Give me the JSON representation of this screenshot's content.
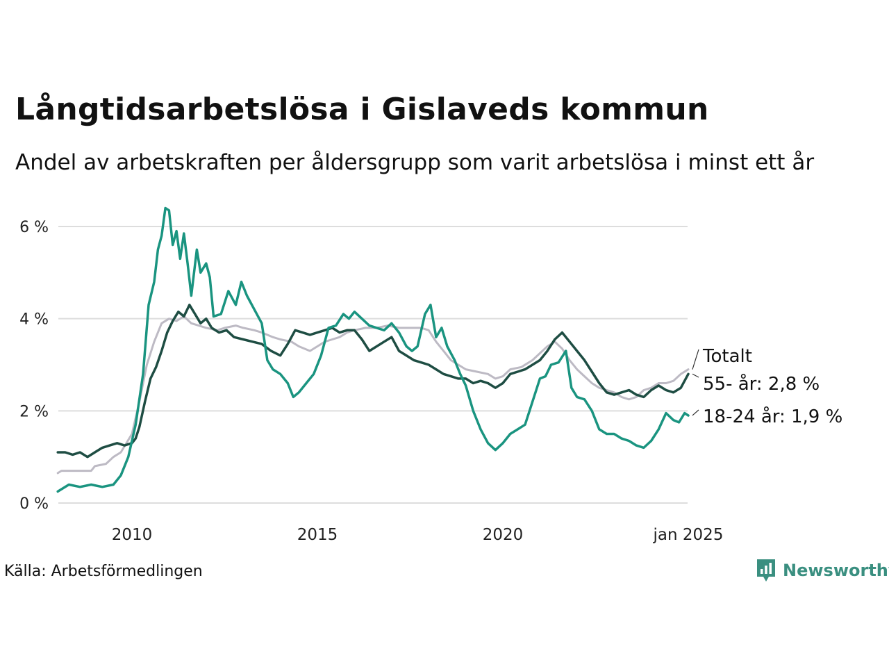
{
  "title": "Långtidsarbetslösa i Gislaveds kommun",
  "subtitle": "Andel av arbetskraften per åldersgrupp som varit arbetslösa i minst ett år",
  "source": "Källa: Arbetsförmedlingen",
  "brand": {
    "name": "Newsworthy",
    "color": "#3a8f80",
    "icon": "bar-chart-icon"
  },
  "chart_data": {
    "type": "line",
    "x_range": [
      2008.0,
      2025.0
    ],
    "ylim": [
      0,
      6.5
    ],
    "grid": true,
    "y_ticks": [
      {
        "value": 0,
        "label": "0 %"
      },
      {
        "value": 2,
        "label": "2 %"
      },
      {
        "value": 4,
        "label": "4 %"
      },
      {
        "value": 6,
        "label": "6 %"
      }
    ],
    "x_ticks": [
      {
        "value": 2010,
        "label": "2010"
      },
      {
        "value": 2015,
        "label": "2015"
      },
      {
        "value": 2020,
        "label": "2020"
      },
      {
        "value": 2025,
        "label": "jan 2025"
      }
    ],
    "legend": "direct-labels-right",
    "series": [
      {
        "name": "Totalt",
        "label": "Totalt",
        "color": "#bdbac4",
        "width": 3,
        "points": [
          [
            2008.0,
            0.65
          ],
          [
            2008.1,
            0.7
          ],
          [
            2008.6,
            0.7
          ],
          [
            2008.9,
            0.7
          ],
          [
            2009.0,
            0.8
          ],
          [
            2009.3,
            0.85
          ],
          [
            2009.5,
            1.0
          ],
          [
            2009.7,
            1.1
          ],
          [
            2010.0,
            1.5
          ],
          [
            2010.2,
            2.2
          ],
          [
            2010.4,
            3.0
          ],
          [
            2010.6,
            3.5
          ],
          [
            2010.8,
            3.9
          ],
          [
            2011.0,
            4.0
          ],
          [
            2011.2,
            3.95
          ],
          [
            2011.4,
            4.05
          ],
          [
            2011.6,
            3.9
          ],
          [
            2011.8,
            3.85
          ],
          [
            2012.0,
            3.8
          ],
          [
            2012.3,
            3.75
          ],
          [
            2012.5,
            3.8
          ],
          [
            2012.8,
            3.85
          ],
          [
            2013.0,
            3.8
          ],
          [
            2013.3,
            3.75
          ],
          [
            2013.5,
            3.7
          ],
          [
            2013.8,
            3.6
          ],
          [
            2014.0,
            3.55
          ],
          [
            2014.3,
            3.5
          ],
          [
            2014.5,
            3.4
          ],
          [
            2014.8,
            3.3
          ],
          [
            2015.0,
            3.4
          ],
          [
            2015.2,
            3.5
          ],
          [
            2015.4,
            3.55
          ],
          [
            2015.6,
            3.6
          ],
          [
            2015.8,
            3.7
          ],
          [
            2016.0,
            3.75
          ],
          [
            2016.3,
            3.8
          ],
          [
            2016.6,
            3.8
          ],
          [
            2016.9,
            3.85
          ],
          [
            2017.2,
            3.8
          ],
          [
            2017.5,
            3.8
          ],
          [
            2017.8,
            3.8
          ],
          [
            2018.0,
            3.75
          ],
          [
            2018.2,
            3.5
          ],
          [
            2018.4,
            3.3
          ],
          [
            2018.6,
            3.1
          ],
          [
            2018.8,
            3.0
          ],
          [
            2019.0,
            2.9
          ],
          [
            2019.3,
            2.85
          ],
          [
            2019.6,
            2.8
          ],
          [
            2019.8,
            2.7
          ],
          [
            2020.0,
            2.75
          ],
          [
            2020.2,
            2.9
          ],
          [
            2020.5,
            2.95
          ],
          [
            2020.8,
            3.1
          ],
          [
            2021.0,
            3.25
          ],
          [
            2021.2,
            3.4
          ],
          [
            2021.4,
            3.5
          ],
          [
            2021.6,
            3.35
          ],
          [
            2021.8,
            3.1
          ],
          [
            2022.0,
            2.9
          ],
          [
            2022.2,
            2.75
          ],
          [
            2022.4,
            2.6
          ],
          [
            2022.6,
            2.5
          ],
          [
            2022.8,
            2.45
          ],
          [
            2023.0,
            2.4
          ],
          [
            2023.2,
            2.3
          ],
          [
            2023.4,
            2.25
          ],
          [
            2023.6,
            2.3
          ],
          [
            2023.8,
            2.45
          ],
          [
            2024.0,
            2.5
          ],
          [
            2024.2,
            2.6
          ],
          [
            2024.4,
            2.6
          ],
          [
            2024.6,
            2.65
          ],
          [
            2024.8,
            2.8
          ],
          [
            2025.0,
            2.9
          ]
        ]
      },
      {
        "name": "55- år",
        "label": "55- år: 2,8 %",
        "color": "#1e4d43",
        "width": 3.5,
        "points": [
          [
            2008.0,
            1.1
          ],
          [
            2008.2,
            1.1
          ],
          [
            2008.4,
            1.05
          ],
          [
            2008.6,
            1.1
          ],
          [
            2008.8,
            1.0
          ],
          [
            2009.0,
            1.1
          ],
          [
            2009.2,
            1.2
          ],
          [
            2009.4,
            1.25
          ],
          [
            2009.6,
            1.3
          ],
          [
            2009.8,
            1.25
          ],
          [
            2010.0,
            1.3
          ],
          [
            2010.1,
            1.4
          ],
          [
            2010.2,
            1.65
          ],
          [
            2010.35,
            2.2
          ],
          [
            2010.5,
            2.7
          ],
          [
            2010.65,
            2.95
          ],
          [
            2010.8,
            3.3
          ],
          [
            2010.95,
            3.7
          ],
          [
            2011.1,
            3.95
          ],
          [
            2011.25,
            4.15
          ],
          [
            2011.4,
            4.05
          ],
          [
            2011.55,
            4.3
          ],
          [
            2011.7,
            4.1
          ],
          [
            2011.85,
            3.9
          ],
          [
            2012.0,
            4.0
          ],
          [
            2012.15,
            3.8
          ],
          [
            2012.35,
            3.7
          ],
          [
            2012.55,
            3.75
          ],
          [
            2012.75,
            3.6
          ],
          [
            2013.0,
            3.55
          ],
          [
            2013.25,
            3.5
          ],
          [
            2013.5,
            3.45
          ],
          [
            2013.75,
            3.3
          ],
          [
            2014.0,
            3.2
          ],
          [
            2014.2,
            3.45
          ],
          [
            2014.4,
            3.75
          ],
          [
            2014.6,
            3.7
          ],
          [
            2014.8,
            3.65
          ],
          [
            2015.0,
            3.7
          ],
          [
            2015.2,
            3.75
          ],
          [
            2015.4,
            3.8
          ],
          [
            2015.6,
            3.7
          ],
          [
            2015.8,
            3.75
          ],
          [
            2016.0,
            3.75
          ],
          [
            2016.2,
            3.55
          ],
          [
            2016.4,
            3.3
          ],
          [
            2016.6,
            3.4
          ],
          [
            2016.8,
            3.5
          ],
          [
            2017.0,
            3.6
          ],
          [
            2017.2,
            3.3
          ],
          [
            2017.4,
            3.2
          ],
          [
            2017.6,
            3.1
          ],
          [
            2017.8,
            3.05
          ],
          [
            2018.0,
            3.0
          ],
          [
            2018.2,
            2.9
          ],
          [
            2018.4,
            2.8
          ],
          [
            2018.6,
            2.75
          ],
          [
            2018.8,
            2.7
          ],
          [
            2019.0,
            2.7
          ],
          [
            2019.2,
            2.6
          ],
          [
            2019.4,
            2.65
          ],
          [
            2019.6,
            2.6
          ],
          [
            2019.8,
            2.5
          ],
          [
            2020.0,
            2.6
          ],
          [
            2020.2,
            2.8
          ],
          [
            2020.4,
            2.85
          ],
          [
            2020.6,
            2.9
          ],
          [
            2020.8,
            3.0
          ],
          [
            2021.0,
            3.1
          ],
          [
            2021.2,
            3.3
          ],
          [
            2021.4,
            3.55
          ],
          [
            2021.6,
            3.7
          ],
          [
            2021.8,
            3.5
          ],
          [
            2022.0,
            3.3
          ],
          [
            2022.2,
            3.1
          ],
          [
            2022.4,
            2.85
          ],
          [
            2022.6,
            2.6
          ],
          [
            2022.8,
            2.4
          ],
          [
            2023.0,
            2.35
          ],
          [
            2023.2,
            2.4
          ],
          [
            2023.4,
            2.45
          ],
          [
            2023.6,
            2.35
          ],
          [
            2023.8,
            2.3
          ],
          [
            2024.0,
            2.45
          ],
          [
            2024.2,
            2.55
          ],
          [
            2024.4,
            2.45
          ],
          [
            2024.6,
            2.4
          ],
          [
            2024.8,
            2.5
          ],
          [
            2025.0,
            2.8
          ]
        ]
      },
      {
        "name": "18-24 år",
        "label": "18-24 år: 1,9 %",
        "color": "#1a9480",
        "width": 3.5,
        "points": [
          [
            2008.0,
            0.25
          ],
          [
            2008.3,
            0.4
          ],
          [
            2008.6,
            0.35
          ],
          [
            2008.9,
            0.4
          ],
          [
            2009.2,
            0.35
          ],
          [
            2009.5,
            0.4
          ],
          [
            2009.7,
            0.6
          ],
          [
            2009.9,
            1.0
          ],
          [
            2010.1,
            1.7
          ],
          [
            2010.3,
            2.8
          ],
          [
            2010.45,
            4.3
          ],
          [
            2010.6,
            4.8
          ],
          [
            2010.7,
            5.5
          ],
          [
            2010.8,
            5.8
          ],
          [
            2010.9,
            6.4
          ],
          [
            2011.0,
            6.35
          ],
          [
            2011.1,
            5.6
          ],
          [
            2011.2,
            5.9
          ],
          [
            2011.3,
            5.3
          ],
          [
            2011.4,
            5.85
          ],
          [
            2011.5,
            5.2
          ],
          [
            2011.6,
            4.5
          ],
          [
            2011.75,
            5.5
          ],
          [
            2011.85,
            5.0
          ],
          [
            2012.0,
            5.2
          ],
          [
            2012.1,
            4.9
          ],
          [
            2012.2,
            4.05
          ],
          [
            2012.4,
            4.1
          ],
          [
            2012.6,
            4.6
          ],
          [
            2012.8,
            4.3
          ],
          [
            2012.95,
            4.8
          ],
          [
            2013.1,
            4.5
          ],
          [
            2013.3,
            4.2
          ],
          [
            2013.5,
            3.9
          ],
          [
            2013.65,
            3.1
          ],
          [
            2013.8,
            2.9
          ],
          [
            2014.0,
            2.8
          ],
          [
            2014.2,
            2.6
          ],
          [
            2014.35,
            2.3
          ],
          [
            2014.5,
            2.4
          ],
          [
            2014.7,
            2.6
          ],
          [
            2014.9,
            2.8
          ],
          [
            2015.1,
            3.2
          ],
          [
            2015.3,
            3.8
          ],
          [
            2015.5,
            3.85
          ],
          [
            2015.7,
            4.1
          ],
          [
            2015.85,
            4.0
          ],
          [
            2016.0,
            4.15
          ],
          [
            2016.2,
            4.0
          ],
          [
            2016.4,
            3.85
          ],
          [
            2016.6,
            3.8
          ],
          [
            2016.8,
            3.75
          ],
          [
            2017.0,
            3.9
          ],
          [
            2017.2,
            3.7
          ],
          [
            2017.4,
            3.4
          ],
          [
            2017.55,
            3.3
          ],
          [
            2017.7,
            3.4
          ],
          [
            2017.9,
            4.1
          ],
          [
            2018.05,
            4.3
          ],
          [
            2018.2,
            3.6
          ],
          [
            2018.35,
            3.8
          ],
          [
            2018.5,
            3.4
          ],
          [
            2018.7,
            3.1
          ],
          [
            2018.85,
            2.8
          ],
          [
            2019.0,
            2.55
          ],
          [
            2019.2,
            2.0
          ],
          [
            2019.4,
            1.6
          ],
          [
            2019.6,
            1.3
          ],
          [
            2019.8,
            1.15
          ],
          [
            2020.0,
            1.3
          ],
          [
            2020.2,
            1.5
          ],
          [
            2020.4,
            1.6
          ],
          [
            2020.6,
            1.7
          ],
          [
            2020.8,
            2.2
          ],
          [
            2021.0,
            2.7
          ],
          [
            2021.15,
            2.75
          ],
          [
            2021.3,
            3.0
          ],
          [
            2021.5,
            3.05
          ],
          [
            2021.7,
            3.3
          ],
          [
            2021.85,
            2.5
          ],
          [
            2022.0,
            2.3
          ],
          [
            2022.2,
            2.25
          ],
          [
            2022.4,
            2.0
          ],
          [
            2022.6,
            1.6
          ],
          [
            2022.8,
            1.5
          ],
          [
            2023.0,
            1.5
          ],
          [
            2023.2,
            1.4
          ],
          [
            2023.4,
            1.35
          ],
          [
            2023.6,
            1.25
          ],
          [
            2023.8,
            1.2
          ],
          [
            2024.0,
            1.35
          ],
          [
            2024.2,
            1.6
          ],
          [
            2024.4,
            1.95
          ],
          [
            2024.6,
            1.8
          ],
          [
            2024.75,
            1.75
          ],
          [
            2024.9,
            1.95
          ],
          [
            2025.0,
            1.9
          ]
        ]
      }
    ]
  }
}
